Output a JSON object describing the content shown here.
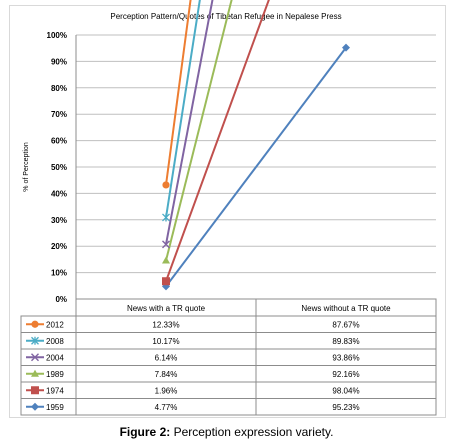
{
  "chart_data": {
    "type": "line",
    "title": "Perception Pattern/Quotes of Tibetan Refugee in Nepalese Press",
    "ylabel": "% of Perception",
    "ylim": [
      0,
      100
    ],
    "yticks": [
      "0%",
      "10%",
      "20%",
      "30%",
      "40%",
      "50%",
      "60%",
      "70%",
      "80%",
      "90%",
      "100%"
    ],
    "categories": [
      "News with a TR quote",
      "News without a TR quote"
    ],
    "plotted_as": "stacked_percent",
    "series": [
      {
        "name": "2012",
        "values": [
          12.33,
          87.67
        ],
        "labels": [
          "12.33%",
          "87.67%"
        ],
        "color": "#ed7d31",
        "marker": "circle"
      },
      {
        "name": "2008",
        "values": [
          10.17,
          89.83
        ],
        "labels": [
          "10.17%",
          "89.83%"
        ],
        "color": "#4bacc6",
        "marker": "asterisk"
      },
      {
        "name": "2004",
        "values": [
          6.14,
          93.86
        ],
        "labels": [
          "6.14%",
          "93.86%"
        ],
        "color": "#8064a2",
        "marker": "x"
      },
      {
        "name": "1989",
        "values": [
          7.84,
          92.16
        ],
        "labels": [
          "7.84%",
          "92.16%"
        ],
        "color": "#9bbb59",
        "marker": "triangle"
      },
      {
        "name": "1974",
        "values": [
          1.96,
          98.04
        ],
        "labels": [
          "1.96%",
          "98.04%"
        ],
        "color": "#c0504d",
        "marker": "square"
      },
      {
        "name": "1959",
        "values": [
          4.77,
          95.23
        ],
        "labels": [
          "4.77%",
          "95.23%"
        ],
        "color": "#4f81bd",
        "marker": "diamond"
      }
    ],
    "grid": true,
    "legend": "data-table"
  },
  "caption": {
    "figure_label": "Figure 2:",
    "text": " Perception expression variety."
  }
}
